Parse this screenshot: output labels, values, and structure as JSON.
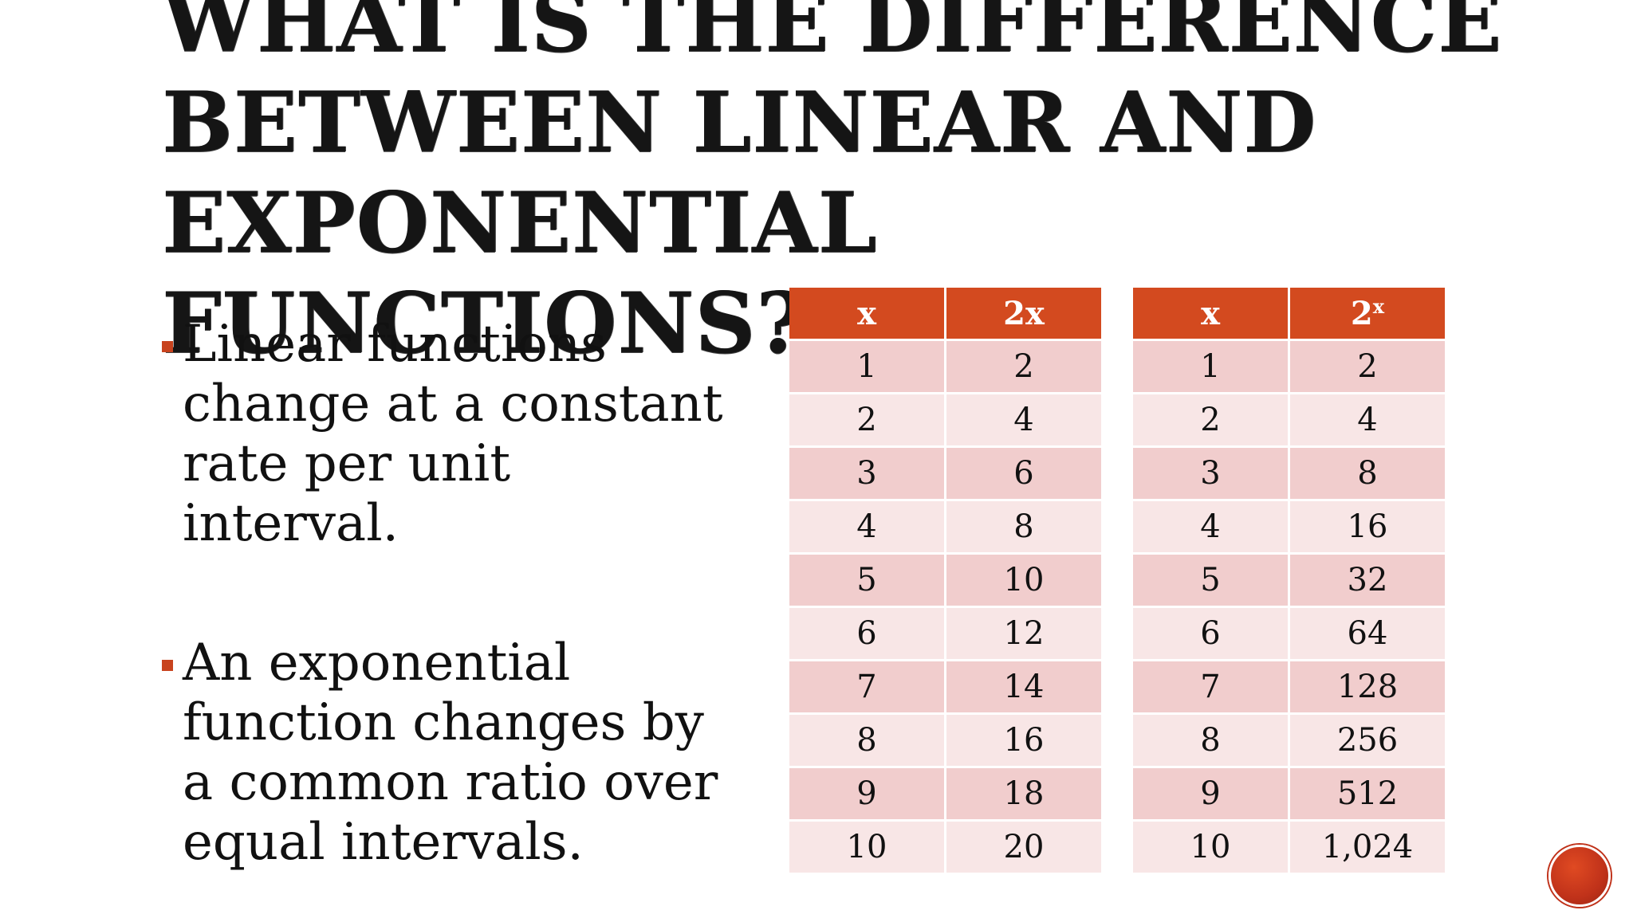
{
  "title": {
    "line1": "What is the difference",
    "line2": "between linear and",
    "line3": "exponential",
    "line4": "functions?"
  },
  "bullets": [
    {
      "text": "Linear functions change at a constant rate per unit interval."
    },
    {
      "text": "An exponential function changes by a common ratio over equal intervals."
    }
  ],
  "linear_table": {
    "headers": [
      "x",
      "2x"
    ],
    "rows": [
      [
        "1",
        "2"
      ],
      [
        "2",
        "4"
      ],
      [
        "3",
        "6"
      ],
      [
        "4",
        "8"
      ],
      [
        "5",
        "10"
      ],
      [
        "6",
        "12"
      ],
      [
        "7",
        "14"
      ],
      [
        "8",
        "16"
      ],
      [
        "9",
        "18"
      ],
      [
        "10",
        "20"
      ]
    ]
  },
  "exponential_table": {
    "headers": [
      "x",
      "2",
      "x"
    ],
    "rows": [
      [
        "1",
        "2"
      ],
      [
        "2",
        "4"
      ],
      [
        "3",
        "8"
      ],
      [
        "4",
        "16"
      ],
      [
        "5",
        "32"
      ],
      [
        "6",
        "64"
      ],
      [
        "7",
        "128"
      ],
      [
        "8",
        "256"
      ],
      [
        "9",
        "512"
      ],
      [
        "10",
        "1,024"
      ]
    ]
  },
  "colors": {
    "header_bg": "#d34a1f",
    "row_odd": "#f1cdcd",
    "row_even": "#f8e6e6",
    "bullet": "#c8431e",
    "nav_button": "#c0321a"
  },
  "icons": {
    "nav_button": "next-slide-circle-icon"
  }
}
